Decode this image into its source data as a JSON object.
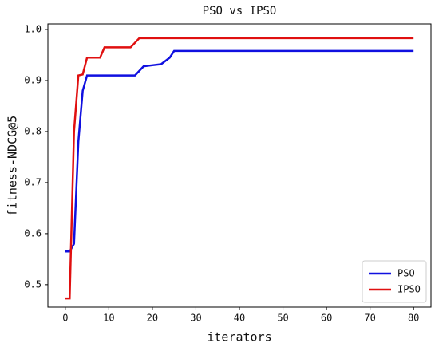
{
  "chart_data": {
    "type": "line",
    "title": "PSO vs IPSO",
    "x_label": "iterators",
    "y_label": "fitness-NDCG@5",
    "xlim": [
      -4,
      84
    ],
    "xticks": [
      0,
      10,
      20,
      30,
      40,
      50,
      60,
      70,
      80
    ],
    "ylim": [
      0.456,
      1.011
    ],
    "yticks": [
      0.5,
      0.6,
      0.7,
      0.8,
      0.9,
      {
        "value": 1,
        "label": "1.0"
      }
    ],
    "legend": "lower right",
    "series": [
      {
        "name": "PSO",
        "color": "#1010e0",
        "x": [
          0,
          1,
          2,
          3,
          4,
          5,
          16,
          18,
          20,
          22,
          24,
          25,
          80
        ],
        "values": [
          0.565,
          0.565,
          0.58,
          0.78,
          0.88,
          0.91,
          0.91,
          0.928,
          0.93,
          0.932,
          0.945,
          0.958,
          0.958
        ]
      },
      {
        "name": "IPSO",
        "color": "#e01010",
        "x": [
          0,
          1,
          2,
          3,
          4,
          5,
          8,
          9,
          15,
          17,
          80
        ],
        "values": [
          0.473,
          0.473,
          0.8,
          0.91,
          0.912,
          0.945,
          0.945,
          0.965,
          0.965,
          0.983,
          0.983
        ]
      }
    ]
  }
}
